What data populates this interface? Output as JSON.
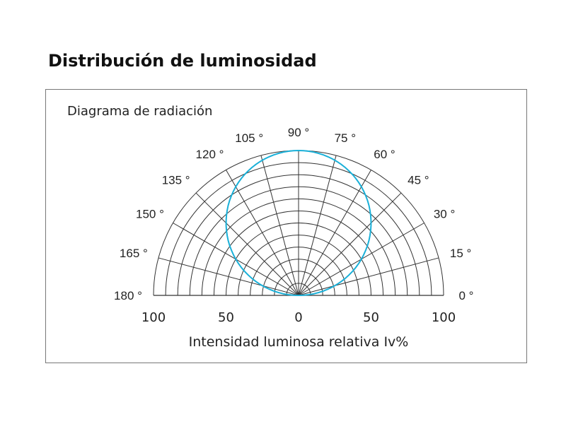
{
  "title": "Distribución de luminosidad",
  "chart_data": {
    "type": "polar",
    "title": "Diagrama de radiación",
    "xlabel": "Intensidad luminosa relativa Iv%",
    "angle_ticks": [
      "0 °",
      "15 °",
      "30 °",
      "45 °",
      "60 °",
      "75 °",
      "90 °",
      "105 °",
      "120 °",
      "135 °",
      "150 °",
      "165 °",
      "180 °"
    ],
    "angle_values": [
      0,
      15,
      30,
      45,
      60,
      75,
      90,
      105,
      120,
      135,
      150,
      165,
      180
    ],
    "radial_ticks": [
      "100",
      "50",
      "0",
      "50",
      "100"
    ],
    "radial_range": [
      0,
      100
    ],
    "grid": true,
    "series": [
      {
        "color": "#1ab0d8",
        "angles_deg": [
          0,
          15,
          30,
          45,
          60,
          75,
          90,
          105,
          120,
          135,
          150,
          165,
          180
        ],
        "values": [
          0,
          26,
          50,
          71,
          87,
          97,
          100,
          97,
          87,
          71,
          50,
          26,
          0
        ]
      }
    ]
  }
}
